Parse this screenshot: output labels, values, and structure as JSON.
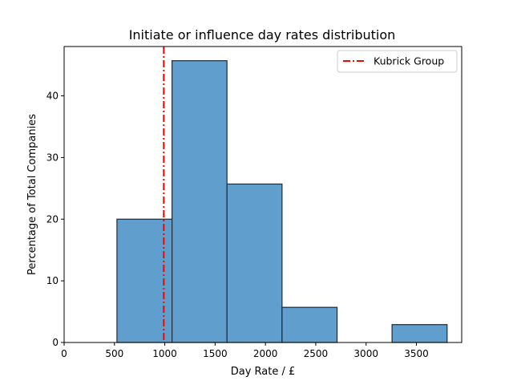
{
  "chart_data": {
    "type": "bar",
    "title": "Initiate or influence day rates distribution",
    "xlabel": "Day Rate / £",
    "ylabel": "Percentage of Total Companies",
    "xlim": [
      0,
      3950
    ],
    "ylim": [
      0,
      48
    ],
    "xticks": [
      0,
      500,
      1000,
      1500,
      2000,
      2500,
      3000,
      3500
    ],
    "yticks": [
      0,
      10,
      20,
      30,
      40
    ],
    "bins": [
      {
        "start": 525,
        "end": 1072,
        "value": 20.0
      },
      {
        "start": 1072,
        "end": 1618,
        "value": 45.7
      },
      {
        "start": 1618,
        "end": 2165,
        "value": 25.7
      },
      {
        "start": 2165,
        "end": 2712,
        "value": 5.7
      },
      {
        "start": 2712,
        "end": 3258,
        "value": 0
      },
      {
        "start": 3258,
        "end": 3805,
        "value": 2.9
      }
    ],
    "reference_line": {
      "name": "Kubrick Group",
      "x": 990,
      "color": "#ff0000",
      "style": "dash-dot"
    },
    "bar_color": "#5f9ecd",
    "bar_edge_color": "#1f2a36",
    "legend_placement": "top-right",
    "grid": false
  }
}
